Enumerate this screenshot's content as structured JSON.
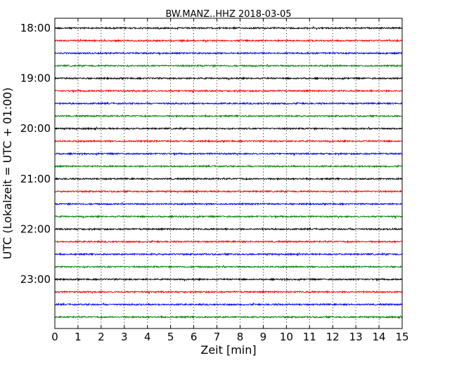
{
  "chart_data": {
    "type": "line",
    "title": "BW.MANZ..HHZ 2018-03-05",
    "xlabel": "Zeit  [min]",
    "ylabel": "UTC (Lokalzeit = UTC + 01:00)",
    "xlim": [
      0,
      15
    ],
    "x_ticks": [
      "0",
      "1",
      "2",
      "3",
      "4",
      "5",
      "6",
      "7",
      "8",
      "9",
      "10",
      "11",
      "12",
      "13",
      "14",
      "15"
    ],
    "y_tick_labels": [
      "18:00",
      "19:00",
      "20:00",
      "21:00",
      "22:00",
      "23:00"
    ],
    "grid": "vertical dotted",
    "color_cycle": [
      "#000000",
      "#ff0000",
      "#0000ff",
      "#008000"
    ],
    "trace_start_times": [
      "18:00",
      "18:15",
      "18:30",
      "18:45",
      "19:00",
      "19:15",
      "19:30",
      "19:45",
      "20:00",
      "20:15",
      "20:30",
      "20:45",
      "21:00",
      "21:15",
      "21:30",
      "21:45",
      "22:00",
      "22:15",
      "22:30",
      "22:45",
      "23:00",
      "23:15",
      "23:30",
      "23:45"
    ]
  }
}
